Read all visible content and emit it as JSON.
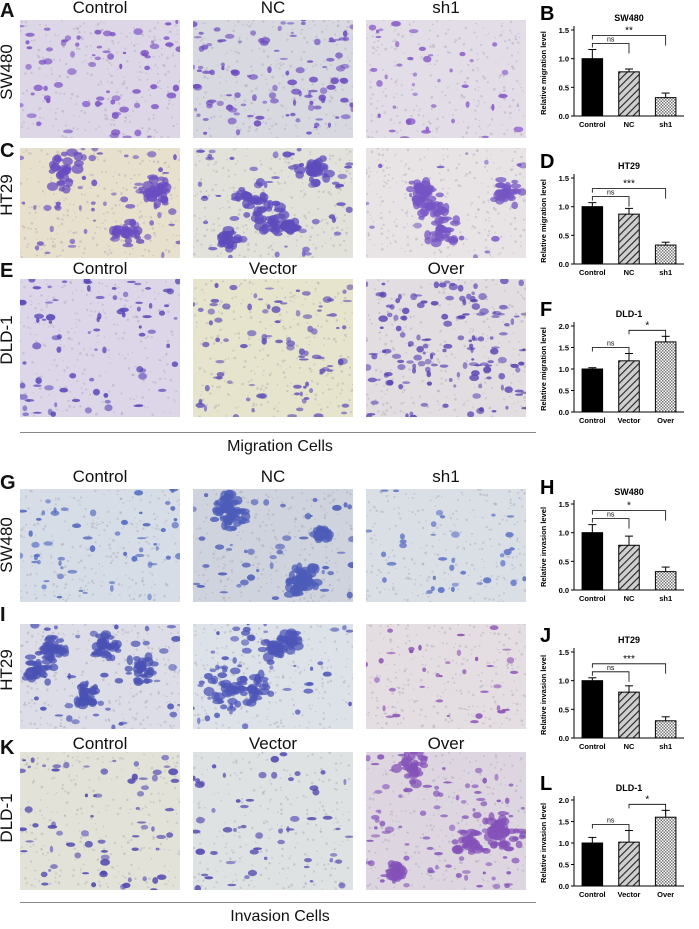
{
  "panels": {
    "migration": {
      "header_sw": [
        "Control",
        "NC",
        "sh1"
      ],
      "header_dld": [
        "Control",
        "Vector",
        "Over"
      ],
      "rows": [
        {
          "letter": "A",
          "label": "SW480"
        },
        {
          "letter": "C",
          "label": "HT29"
        },
        {
          "letter": "E",
          "label": "DLD-1"
        }
      ],
      "footer": "Migration  Cells"
    },
    "invasion": {
      "header_sw": [
        "Control",
        "NC",
        "sh1"
      ],
      "header_dld": [
        "Control",
        "Vector",
        "Over"
      ],
      "rows": [
        {
          "letter": "G",
          "label": "SW480"
        },
        {
          "letter": "I",
          "label": "HT29"
        },
        {
          "letter": "K",
          "label": "DLD-1"
        }
      ],
      "footer": "Invasion  Cells"
    }
  },
  "colors": {
    "stain_purple": "#6a4bb8",
    "stain_blue": "#5a6ec4",
    "background_violet": "#ddd6e6",
    "background_green": "#e6e4cc",
    "background_blue": "#d6dde6"
  },
  "chart_data": [
    {
      "letter": "B",
      "type": "bar",
      "title": "SW480",
      "ylabel": "Relative migration level",
      "categories": [
        "Control",
        "NC",
        "sh1"
      ],
      "values": [
        1.0,
        0.77,
        0.32
      ],
      "errors": [
        0.16,
        0.05,
        0.08
      ],
      "ylim": [
        0,
        1.5
      ],
      "yticks": [
        "0.0",
        "0.5",
        "1.0",
        "1.5"
      ],
      "brackets": [
        {
          "from": 0,
          "to": 1,
          "label": "ns"
        },
        {
          "from": 0,
          "to": 2,
          "label": "**"
        }
      ]
    },
    {
      "letter": "D",
      "type": "bar",
      "title": "HT29",
      "ylabel": "Relative migration level",
      "categories": [
        "Control",
        "NC",
        "sh1"
      ],
      "values": [
        1.0,
        0.87,
        0.33
      ],
      "errors": [
        0.07,
        0.1,
        0.05
      ],
      "ylim": [
        0,
        1.5
      ],
      "yticks": [
        "0.0",
        "0.5",
        "1.0",
        "1.5"
      ],
      "brackets": [
        {
          "from": 0,
          "to": 1,
          "label": "ns"
        },
        {
          "from": 0,
          "to": 2,
          "label": "***"
        }
      ]
    },
    {
      "letter": "F",
      "type": "bar",
      "title": "DLD-1",
      "ylabel": "Relative migration level",
      "categories": [
        "Control",
        "Vector",
        "Over"
      ],
      "values": [
        1.0,
        1.19,
        1.63
      ],
      "errors": [
        0.03,
        0.17,
        0.13
      ],
      "ylim": [
        0,
        2.0
      ],
      "yticks": [
        "0.0",
        "0.5",
        "1.0",
        "1.5",
        "2.0"
      ],
      "brackets": [
        {
          "from": 0,
          "to": 1,
          "label": "ns"
        },
        {
          "from": 1,
          "to": 2,
          "label": "*"
        }
      ]
    },
    {
      "letter": "H",
      "type": "bar",
      "title": "SW480",
      "ylabel": "Relative invasion level",
      "categories": [
        "Control",
        "NC",
        "sh1"
      ],
      "values": [
        1.0,
        0.78,
        0.32
      ],
      "errors": [
        0.14,
        0.16,
        0.08
      ],
      "ylim": [
        0,
        1.5
      ],
      "yticks": [
        "0.0",
        "0.5",
        "1.0",
        "1.5"
      ],
      "brackets": [
        {
          "from": 0,
          "to": 1,
          "label": "ns"
        },
        {
          "from": 0,
          "to": 2,
          "label": "*"
        }
      ]
    },
    {
      "letter": "J",
      "type": "bar",
      "title": "HT29",
      "ylabel": "Relative invasion level",
      "categories": [
        "Control",
        "NC",
        "sh1"
      ],
      "values": [
        1.0,
        0.8,
        0.3
      ],
      "errors": [
        0.05,
        0.11,
        0.07
      ],
      "ylim": [
        0,
        1.5
      ],
      "yticks": [
        "0.0",
        "0.5",
        "1.0",
        "1.5"
      ],
      "brackets": [
        {
          "from": 0,
          "to": 1,
          "label": "ns"
        },
        {
          "from": 0,
          "to": 2,
          "label": "***"
        }
      ]
    },
    {
      "letter": "L",
      "type": "bar",
      "title": "DLD-1",
      "ylabel": "Relative invasion level",
      "categories": [
        "Control",
        "Vector",
        "Over"
      ],
      "values": [
        1.0,
        1.02,
        1.6
      ],
      "errors": [
        0.13,
        0.27,
        0.16
      ],
      "ylim": [
        0,
        2.0
      ],
      "yticks": [
        "0.0",
        "0.5",
        "1.0",
        "1.5",
        "2.0"
      ],
      "brackets": [
        {
          "from": 0,
          "to": 1,
          "label": "ns"
        },
        {
          "from": 1,
          "to": 2,
          "label": "*"
        }
      ]
    }
  ]
}
